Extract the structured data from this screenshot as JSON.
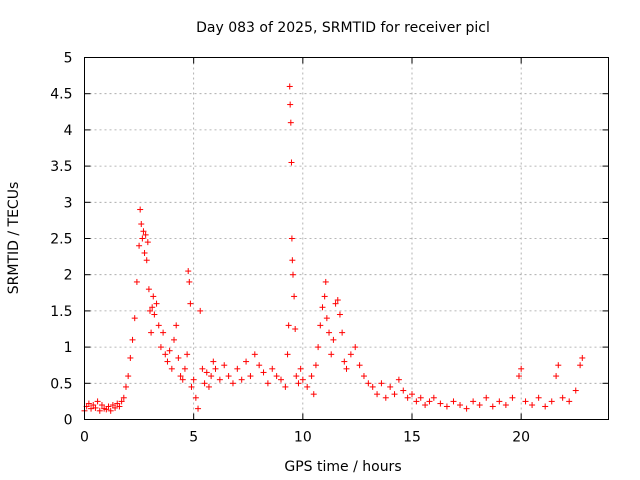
{
  "chart_data": {
    "type": "scatter",
    "title": "Day 083 of 2025, SRMTID for receiver picl",
    "xlabel": "GPS time / hours",
    "ylabel": "SRMTID / TECUs",
    "xlim": [
      0,
      24
    ],
    "ylim": [
      0,
      5
    ],
    "xticks": [
      0,
      5,
      10,
      15,
      20
    ],
    "xtick_labels": [
      "0",
      "5",
      "10",
      "15",
      "20"
    ],
    "yticks": [
      0,
      0.5,
      1,
      1.5,
      2,
      2.5,
      3,
      3.5,
      4,
      4.5,
      5
    ],
    "ytick_labels": [
      "0",
      "0.5",
      "1",
      "1.5",
      "2",
      "2.5",
      "3",
      "3.5",
      "4",
      "4.5",
      "5"
    ],
    "grid": true,
    "marker": "plus",
    "color": "#ff0000",
    "series": [
      {
        "name": "SRMTID",
        "points": [
          [
            0.0,
            0.12
          ],
          [
            0.1,
            0.18
          ],
          [
            0.2,
            0.22
          ],
          [
            0.3,
            0.15
          ],
          [
            0.4,
            0.2
          ],
          [
            0.5,
            0.16
          ],
          [
            0.6,
            0.25
          ],
          [
            0.7,
            0.12
          ],
          [
            0.8,
            0.2
          ],
          [
            0.9,
            0.15
          ],
          [
            1.0,
            0.14
          ],
          [
            1.1,
            0.18
          ],
          [
            1.2,
            0.12
          ],
          [
            1.3,
            0.2
          ],
          [
            1.4,
            0.16
          ],
          [
            1.5,
            0.22
          ],
          [
            1.6,
            0.18
          ],
          [
            1.7,
            0.25
          ],
          [
            1.8,
            0.3
          ],
          [
            1.9,
            0.45
          ],
          [
            2.0,
            0.6
          ],
          [
            2.1,
            0.85
          ],
          [
            2.2,
            1.1
          ],
          [
            2.3,
            1.4
          ],
          [
            2.4,
            1.9
          ],
          [
            2.5,
            2.4
          ],
          [
            2.55,
            2.9
          ],
          [
            2.6,
            2.7
          ],
          [
            2.65,
            2.5
          ],
          [
            2.7,
            2.6
          ],
          [
            2.75,
            2.3
          ],
          [
            2.8,
            2.55
          ],
          [
            2.85,
            2.2
          ],
          [
            2.9,
            2.45
          ],
          [
            2.95,
            1.8
          ],
          [
            3.0,
            1.5
          ],
          [
            3.05,
            1.2
          ],
          [
            3.1,
            1.55
          ],
          [
            3.15,
            1.7
          ],
          [
            3.2,
            1.45
          ],
          [
            3.3,
            1.6
          ],
          [
            3.4,
            1.3
          ],
          [
            3.5,
            1.0
          ],
          [
            3.6,
            1.2
          ],
          [
            3.7,
            0.9
          ],
          [
            3.8,
            0.8
          ],
          [
            3.9,
            0.95
          ],
          [
            4.0,
            0.7
          ],
          [
            4.1,
            1.1
          ],
          [
            4.2,
            1.3
          ],
          [
            4.3,
            0.85
          ],
          [
            4.4,
            0.6
          ],
          [
            4.5,
            0.55
          ],
          [
            4.6,
            0.7
          ],
          [
            4.7,
            0.9
          ],
          [
            4.75,
            2.05
          ],
          [
            4.8,
            1.9
          ],
          [
            4.85,
            1.6
          ],
          [
            4.9,
            0.45
          ],
          [
            5.0,
            0.55
          ],
          [
            5.1,
            0.3
          ],
          [
            5.2,
            0.15
          ],
          [
            5.3,
            1.5
          ],
          [
            5.4,
            0.7
          ],
          [
            5.5,
            0.5
          ],
          [
            5.6,
            0.65
          ],
          [
            5.7,
            0.45
          ],
          [
            5.8,
            0.6
          ],
          [
            5.9,
            0.8
          ],
          [
            6.0,
            0.7
          ],
          [
            6.2,
            0.55
          ],
          [
            6.4,
            0.75
          ],
          [
            6.6,
            0.6
          ],
          [
            6.8,
            0.5
          ],
          [
            7.0,
            0.7
          ],
          [
            7.2,
            0.55
          ],
          [
            7.4,
            0.8
          ],
          [
            7.6,
            0.6
          ],
          [
            7.8,
            0.9
          ],
          [
            8.0,
            0.75
          ],
          [
            8.2,
            0.65
          ],
          [
            8.4,
            0.5
          ],
          [
            8.6,
            0.7
          ],
          [
            8.8,
            0.6
          ],
          [
            9.0,
            0.55
          ],
          [
            9.2,
            0.45
          ],
          [
            9.3,
            0.9
          ],
          [
            9.35,
            1.3
          ],
          [
            9.4,
            4.6
          ],
          [
            9.42,
            4.35
          ],
          [
            9.45,
            4.1
          ],
          [
            9.48,
            3.55
          ],
          [
            9.5,
            2.5
          ],
          [
            9.52,
            2.2
          ],
          [
            9.55,
            2.0
          ],
          [
            9.6,
            1.7
          ],
          [
            9.65,
            1.25
          ],
          [
            9.7,
            0.6
          ],
          [
            9.8,
            0.5
          ],
          [
            9.9,
            0.7
          ],
          [
            10.0,
            0.55
          ],
          [
            10.2,
            0.45
          ],
          [
            10.4,
            0.6
          ],
          [
            10.5,
            0.35
          ],
          [
            10.6,
            0.75
          ],
          [
            10.7,
            1.0
          ],
          [
            10.8,
            1.3
          ],
          [
            10.9,
            1.55
          ],
          [
            11.0,
            1.7
          ],
          [
            11.05,
            1.9
          ],
          [
            11.1,
            1.4
          ],
          [
            11.2,
            1.2
          ],
          [
            11.3,
            0.9
          ],
          [
            11.4,
            1.1
          ],
          [
            11.5,
            1.6
          ],
          [
            11.6,
            1.65
          ],
          [
            11.7,
            1.45
          ],
          [
            11.8,
            1.2
          ],
          [
            11.9,
            0.8
          ],
          [
            12.0,
            0.7
          ],
          [
            12.2,
            0.9
          ],
          [
            12.4,
            1.0
          ],
          [
            12.6,
            0.75
          ],
          [
            12.8,
            0.6
          ],
          [
            13.0,
            0.5
          ],
          [
            13.2,
            0.45
          ],
          [
            13.4,
            0.35
          ],
          [
            13.6,
            0.5
          ],
          [
            13.8,
            0.3
          ],
          [
            14.0,
            0.45
          ],
          [
            14.2,
            0.35
          ],
          [
            14.4,
            0.55
          ],
          [
            14.6,
            0.4
          ],
          [
            14.8,
            0.3
          ],
          [
            15.0,
            0.35
          ],
          [
            15.2,
            0.25
          ],
          [
            15.4,
            0.3
          ],
          [
            15.6,
            0.2
          ],
          [
            15.8,
            0.25
          ],
          [
            16.0,
            0.3
          ],
          [
            16.3,
            0.22
          ],
          [
            16.6,
            0.18
          ],
          [
            16.9,
            0.25
          ],
          [
            17.2,
            0.2
          ],
          [
            17.5,
            0.15
          ],
          [
            17.8,
            0.25
          ],
          [
            18.1,
            0.2
          ],
          [
            18.4,
            0.3
          ],
          [
            18.7,
            0.18
          ],
          [
            19.0,
            0.25
          ],
          [
            19.3,
            0.2
          ],
          [
            19.6,
            0.3
          ],
          [
            19.9,
            0.6
          ],
          [
            20.0,
            0.7
          ],
          [
            20.2,
            0.25
          ],
          [
            20.5,
            0.2
          ],
          [
            20.8,
            0.3
          ],
          [
            21.1,
            0.18
          ],
          [
            21.4,
            0.25
          ],
          [
            21.6,
            0.6
          ],
          [
            21.7,
            0.75
          ],
          [
            21.9,
            0.3
          ],
          [
            22.2,
            0.25
          ],
          [
            22.5,
            0.4
          ],
          [
            22.7,
            0.75
          ],
          [
            22.8,
            0.85
          ]
        ]
      }
    ]
  }
}
